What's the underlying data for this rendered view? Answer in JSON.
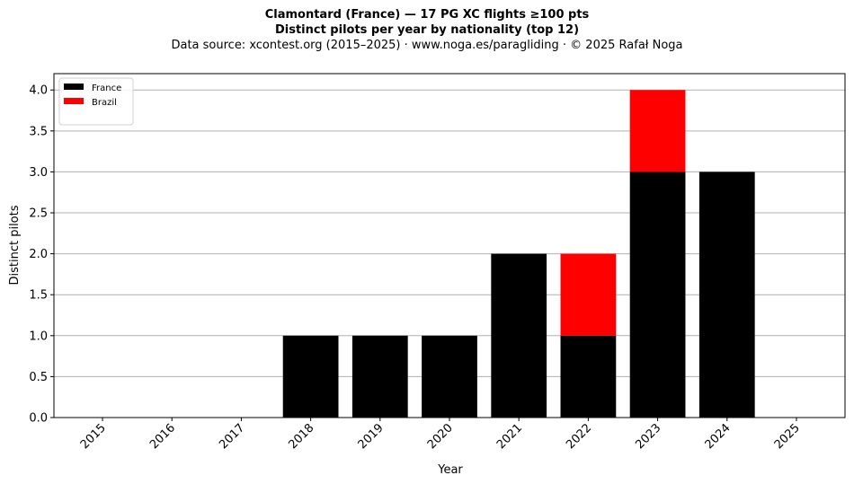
{
  "header": {
    "title": "Clamontard (France)  —  17 PG XC flights ≥100 pts",
    "subtitle": "Distinct pilots per year by nationality (top 12)",
    "source": "Data source: xcontest.org (2015–2025)  ·  www.noga.es/paragliding  ·  © 2025 Rafał Noga"
  },
  "chart_data": {
    "type": "bar",
    "stacked": true,
    "title": "Clamontard (France)  —  17 PG XC flights ≥100 pts",
    "subtitle": "Distinct pilots per year by nationality (top 12)",
    "xlabel": "Year",
    "ylabel": "Distinct pilots",
    "ylim": [
      0,
      4.2
    ],
    "yticks": [
      "0.0",
      "0.5",
      "1.0",
      "1.5",
      "2.0",
      "2.5",
      "3.0",
      "3.5",
      "4.0"
    ],
    "grid": "horizontal",
    "legend_position": "top-left",
    "categories": [
      "2015",
      "2016",
      "2017",
      "2018",
      "2019",
      "2020",
      "2021",
      "2022",
      "2023",
      "2024",
      "2025"
    ],
    "series": [
      {
        "name": "France",
        "color": "#000000",
        "values": [
          0,
          0,
          0,
          1,
          1,
          1,
          2,
          1,
          3,
          3,
          0
        ]
      },
      {
        "name": "Brazil",
        "color": "#ff0000",
        "values": [
          0,
          0,
          0,
          0,
          0,
          0,
          0,
          1,
          1,
          0,
          0
        ]
      }
    ]
  }
}
